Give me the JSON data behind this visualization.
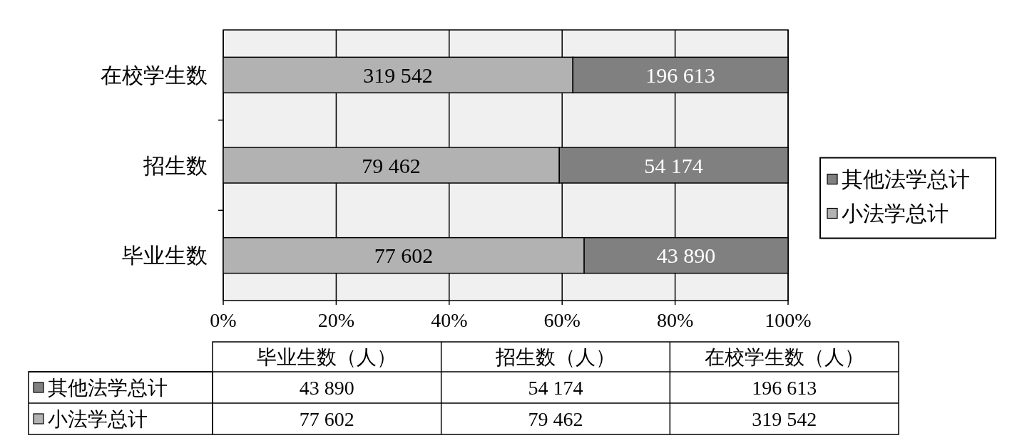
{
  "chart_data": {
    "type": "bar",
    "orientation": "horizontal",
    "stacked": true,
    "categories": [
      "在校学生数",
      "招生数",
      "毕业生数"
    ],
    "series": [
      {
        "name": "小法学总计",
        "color": "#b2b2b2",
        "values": [
          61.9,
          59.5,
          63.9
        ]
      },
      {
        "name": "其他法学总计",
        "color": "#808080",
        "values": [
          38.1,
          40.5,
          36.1
        ]
      }
    ],
    "xlim": [
      0,
      100
    ],
    "xticks": [
      {
        "value": 0,
        "label": "0%"
      },
      {
        "value": 20,
        "label": "20%"
      },
      {
        "value": 40,
        "label": "40%"
      },
      {
        "value": 60,
        "label": "60%"
      },
      {
        "value": 80,
        "label": "80%"
      },
      {
        "value": 100,
        "label": "100%"
      }
    ],
    "grid": "x",
    "legend": "right",
    "annotations": [
      "319 542",
      "196 613",
      "79 462",
      "54 174",
      "77 602",
      "43 890",
      "毕业生数（人）",
      "招生数（人）",
      "在校学生数（人）"
    ]
  }
}
